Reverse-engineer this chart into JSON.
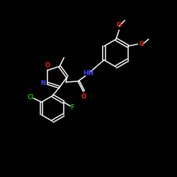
{
  "background_color": "#000000",
  "bond_color": "#ffffff",
  "atom_colors": {
    "O": "#ff2200",
    "N_blue": "#4444ff",
    "Cl": "#00bb00",
    "F": "#00bb00"
  },
  "figsize": [
    2.5,
    2.5
  ],
  "dpi": 100
}
